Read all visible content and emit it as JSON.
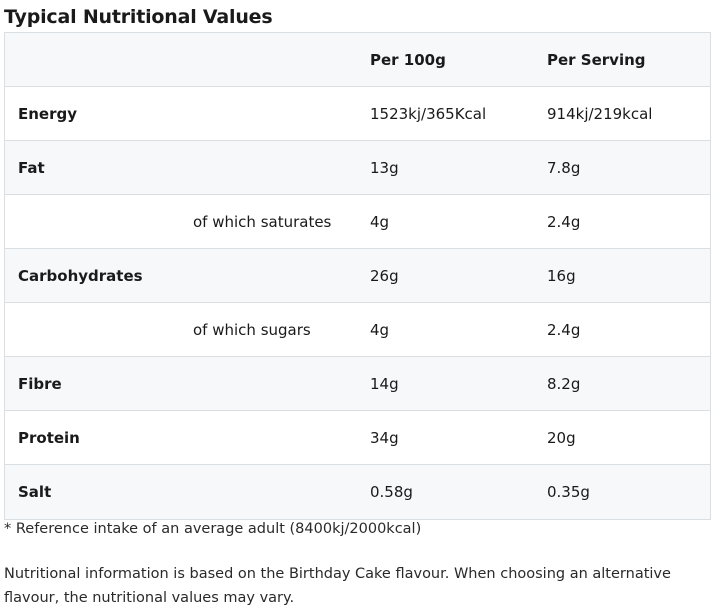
{
  "title": "Typical Nutritional Values",
  "table": {
    "headers": [
      "",
      "Per 100g",
      "Per Serving"
    ],
    "rows": [
      {
        "label": "Energy",
        "per100": "1523kj/365Kcal",
        "serving": "914kj/219kcal"
      },
      {
        "label": "Fat",
        "per100": "13g",
        "serving": "7.8g"
      },
      {
        "label": "of which saturates",
        "per100": "4g",
        "serving": "2.4g"
      },
      {
        "label": "Carbohydrates",
        "per100": "26g",
        "serving": "16g"
      },
      {
        "label": "of which sugars",
        "per100": "4g",
        "serving": "2.4g"
      },
      {
        "label": "Fibre",
        "per100": "14g",
        "serving": "8.2g"
      },
      {
        "label": "Protein",
        "per100": "34g",
        "serving": "20g"
      },
      {
        "label": "Salt",
        "per100": "0.58g",
        "serving": "0.35g"
      }
    ]
  },
  "footnote": "* Reference intake of an average adult (8400kj/2000kcal)",
  "info": "Nutritional information is based on the Birthday Cake flavour. When choosing an alternative flavour, the nutritional values may vary."
}
